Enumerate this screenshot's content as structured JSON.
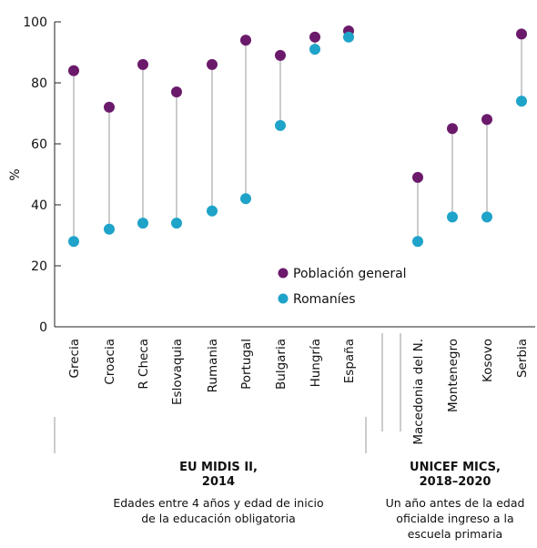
{
  "chart_data": {
    "type": "scatter",
    "subtype": "dumbbell",
    "ylabel": "%",
    "ylim": [
      0,
      100
    ],
    "yticks": [
      0,
      20,
      40,
      60,
      80,
      100
    ],
    "grid": false,
    "legend_position": "center-right",
    "categories": [
      "Grecia",
      "Croacia",
      "R Checa",
      "Eslovaquia",
      "Rumania",
      "Portugal",
      "Bulgaria",
      "Hungría",
      "España",
      "Macedonia del N.",
      "Montenegro",
      "Kosovo",
      "Serbia"
    ],
    "series": [
      {
        "name": "Población general",
        "color": "#6b1a6b",
        "values": [
          84,
          72,
          86,
          77,
          86,
          94,
          89,
          95,
          97,
          49,
          65,
          68,
          96
        ]
      },
      {
        "name": "Romaníes",
        "color": "#1fa3c8",
        "values": [
          28,
          32,
          34,
          34,
          38,
          42,
          66,
          91,
          95,
          28,
          36,
          36,
          74
        ]
      }
    ],
    "groups": [
      {
        "title_line1": "EU MIDIS II,",
        "title_line2": "2014",
        "desc_line1": "Edades entre 4 años y edad de inicio",
        "desc_line2": "de la educación obligatoria",
        "start": 0,
        "end": 8
      },
      {
        "title_line1": "UNICEF MICS,",
        "title_line2": "2018–2020",
        "desc_line1": "Un año antes de la edad",
        "desc_line2": "oficialde ingreso a la",
        "desc_line3": "escuela primaria",
        "start": 9,
        "end": 12
      }
    ]
  }
}
